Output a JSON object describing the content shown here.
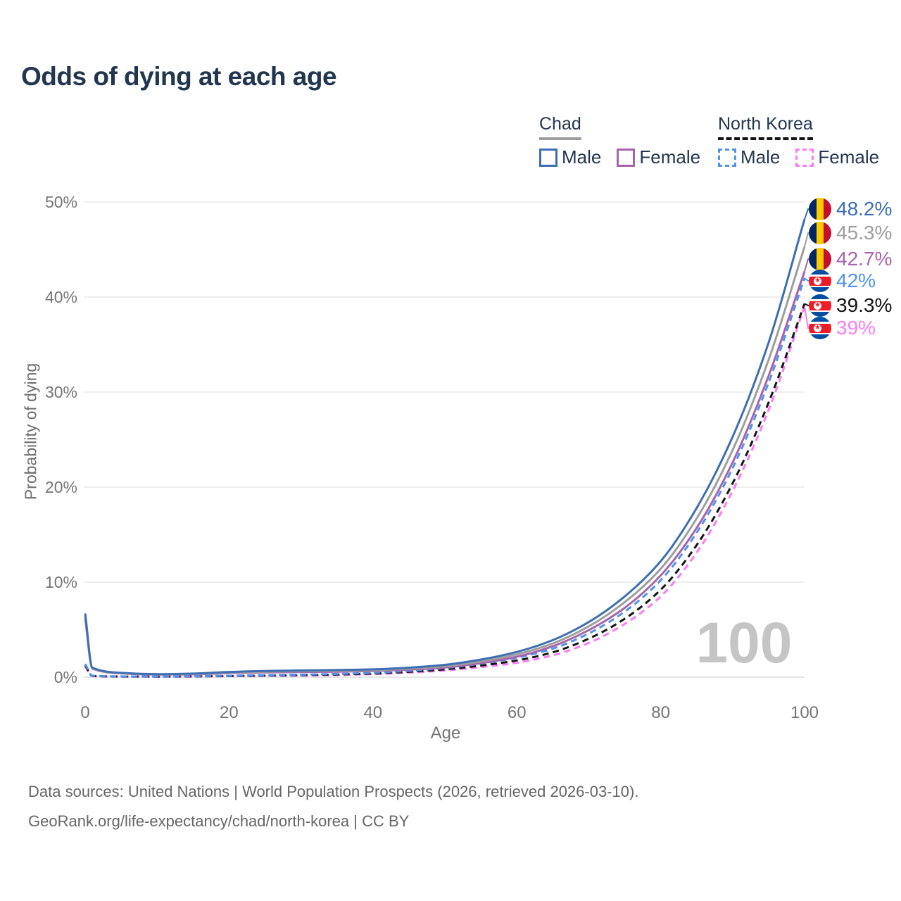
{
  "title": "Odds of dying at each age",
  "watermark": "100",
  "legend": {
    "chad": {
      "name": "Chad",
      "male_label": "Male",
      "female_label": "Female"
    },
    "north_korea": {
      "name": "North Korea",
      "male_label": "Male",
      "female_label": "Female"
    }
  },
  "axes": {
    "x_title": "Age",
    "y_title": "Probability of dying"
  },
  "footer": {
    "line1": "Data sources: United Nations | World Population Prospects (2026, retrieved 2026-03-10).",
    "line2": "GeoRank.org/life-expectancy/chad/north-korea | CC BY"
  },
  "colors": {
    "title_text": "#22374f",
    "legend_text": "#22374f",
    "axis_text": "#757575",
    "axis_title_text": "#6e6e6e",
    "grid": "#e9e9e9",
    "grid_zero": "#dcdcdc",
    "watermark": "#c5c5c5",
    "footer_text": "#666666",
    "chad_underline": "#9e9e9e",
    "nk_underline": "#141414",
    "chad_flag": [
      "#002664",
      "#FECB00",
      "#C60C30"
    ],
    "nk_flag": [
      "#024FA2",
      "#ffffff",
      "#ED1C27"
    ]
  },
  "chart_data": {
    "type": "line",
    "title": "Odds of dying at each age",
    "xlabel": "Age",
    "ylabel": "Probability of dying",
    "xlim": [
      0,
      100
    ],
    "ylim": [
      0,
      50
    ],
    "x_ticks": [
      0,
      20,
      40,
      60,
      80,
      100
    ],
    "y_ticks": [
      0,
      10,
      20,
      30,
      40,
      50
    ],
    "y_tick_suffix": "%",
    "legend_position": "top-right",
    "grid": "horizontal",
    "ages": [
      0,
      1,
      5,
      10,
      15,
      20,
      25,
      30,
      35,
      40,
      45,
      50,
      55,
      60,
      65,
      70,
      75,
      80,
      85,
      90,
      95,
      100
    ],
    "series": [
      {
        "name": "Chad Male",
        "country": "Chad",
        "sex": "Male",
        "color": "#3d6eb4",
        "dashed": false,
        "end_label": "48.2%",
        "flag": "chad",
        "values": [
          6.7,
          1.0,
          0.45,
          0.32,
          0.38,
          0.55,
          0.65,
          0.7,
          0.75,
          0.82,
          1.0,
          1.3,
          1.85,
          2.65,
          3.9,
          5.8,
          8.5,
          12.2,
          17.8,
          25.3,
          35.2,
          48.2
        ]
      },
      {
        "name": "Chad Both sexes",
        "country": "Chad",
        "sex": "Both",
        "color": "#9e9e9e",
        "dashed": false,
        "end_label": "45.3%",
        "flag": "chad",
        "values": [
          6.5,
          0.95,
          0.42,
          0.3,
          0.34,
          0.48,
          0.57,
          0.62,
          0.66,
          0.73,
          0.9,
          1.15,
          1.65,
          2.4,
          3.55,
          5.35,
          7.9,
          11.4,
          16.7,
          23.9,
          33.4,
          45.3
        ]
      },
      {
        "name": "Chad Female",
        "country": "Chad",
        "sex": "Female",
        "color": "#a765a9",
        "dashed": false,
        "end_label": "42.7%",
        "flag": "chad",
        "values": [
          6.2,
          0.9,
          0.4,
          0.28,
          0.3,
          0.42,
          0.5,
          0.54,
          0.58,
          0.65,
          0.8,
          1.02,
          1.47,
          2.15,
          3.25,
          4.95,
          7.3,
          10.7,
          15.7,
          22.6,
          31.7,
          42.7
        ]
      },
      {
        "name": "North Korea Male",
        "country": "North Korea",
        "sex": "Male",
        "color": "#4d93ee",
        "dashed": true,
        "end_label": "42%",
        "flag": "nk",
        "values": [
          1.4,
          0.15,
          0.08,
          0.07,
          0.1,
          0.15,
          0.2,
          0.26,
          0.34,
          0.46,
          0.66,
          0.97,
          1.42,
          2.05,
          3.0,
          4.6,
          6.9,
          10.2,
          15.2,
          22.0,
          31.0,
          42.0
        ]
      },
      {
        "name": "North Korea Both sexes",
        "country": "North Korea",
        "sex": "Both",
        "color": "#141414",
        "dashed": true,
        "end_label": "39.3%",
        "flag": "nk",
        "values": [
          1.25,
          0.13,
          0.07,
          0.06,
          0.08,
          0.12,
          0.16,
          0.21,
          0.28,
          0.38,
          0.56,
          0.82,
          1.22,
          1.76,
          2.62,
          4.05,
          6.15,
          9.2,
          13.9,
          20.4,
          28.9,
          39.3
        ]
      },
      {
        "name": "North Korea Female",
        "country": "North Korea",
        "sex": "Female",
        "color": "#fa7cf3",
        "dashed": true,
        "end_label": "39%",
        "flag": "nk",
        "values": [
          1.1,
          0.11,
          0.06,
          0.05,
          0.07,
          0.1,
          0.13,
          0.17,
          0.23,
          0.32,
          0.48,
          0.7,
          1.05,
          1.52,
          2.3,
          3.6,
          5.6,
          8.5,
          13.1,
          19.6,
          28.1,
          39.0
        ]
      }
    ]
  }
}
